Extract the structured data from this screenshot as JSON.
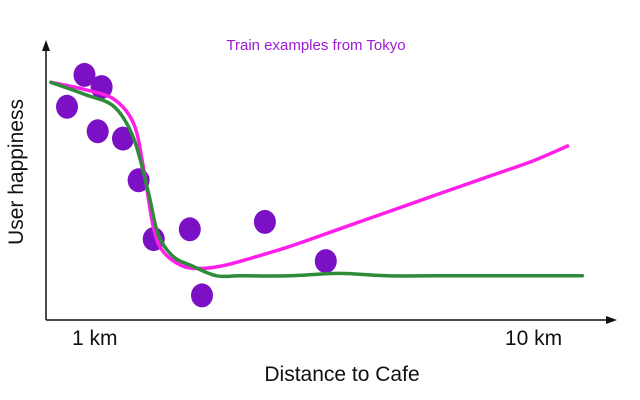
{
  "chart_data": {
    "type": "scatter",
    "title": "Train examples from Tokyo",
    "xlabel": "Distance to Cafe",
    "ylabel": "User happiness",
    "x_ticks": [
      {
        "value": 1,
        "label": "1 km"
      },
      {
        "value": 10,
        "label": "10 km"
      }
    ],
    "xlim": [
      0,
      11.2
    ],
    "ylim": [
      0,
      100
    ],
    "grid": false,
    "legend": "none",
    "colors": {
      "points": "#7b10c4",
      "series_1": "#ff1fe8",
      "series_2": "#2e8b3a",
      "title": "#9b1bd6",
      "axes": "#111111"
    },
    "points": [
      {
        "x": 0.43,
        "y": 85
      },
      {
        "x": 0.79,
        "y": 98
      },
      {
        "x": 1.14,
        "y": 93
      },
      {
        "x": 1.06,
        "y": 75
      },
      {
        "x": 1.58,
        "y": 72
      },
      {
        "x": 1.9,
        "y": 55
      },
      {
        "x": 2.21,
        "y": 31
      },
      {
        "x": 2.95,
        "y": 35
      },
      {
        "x": 3.2,
        "y": 8
      },
      {
        "x": 4.49,
        "y": 38
      },
      {
        "x": 5.74,
        "y": 22
      }
    ],
    "series": [
      {
        "x": [
          0.1,
          0.8,
          1.4,
          1.8,
          2.0,
          2.2,
          2.4,
          2.8,
          3.2,
          3.6,
          4.0,
          5.0,
          6.0,
          7.0,
          8.0,
          9.0,
          10.0,
          10.7
        ],
        "y": [
          95,
          92,
          88,
          78,
          60,
          36,
          26,
          20,
          19,
          20,
          22,
          28,
          35,
          42,
          49,
          56,
          63,
          69
        ]
      },
      {
        "x": [
          0.1,
          0.8,
          1.4,
          1.8,
          2.1,
          2.3,
          2.6,
          3.0,
          3.5,
          4.0,
          5.0,
          6.0,
          7.0,
          8.0,
          9.0,
          10.0,
          11.0
        ],
        "y": [
          95,
          90,
          85,
          72,
          50,
          33,
          24,
          20,
          16,
          16,
          16,
          17,
          16,
          16,
          16,
          16,
          16
        ]
      }
    ]
  }
}
